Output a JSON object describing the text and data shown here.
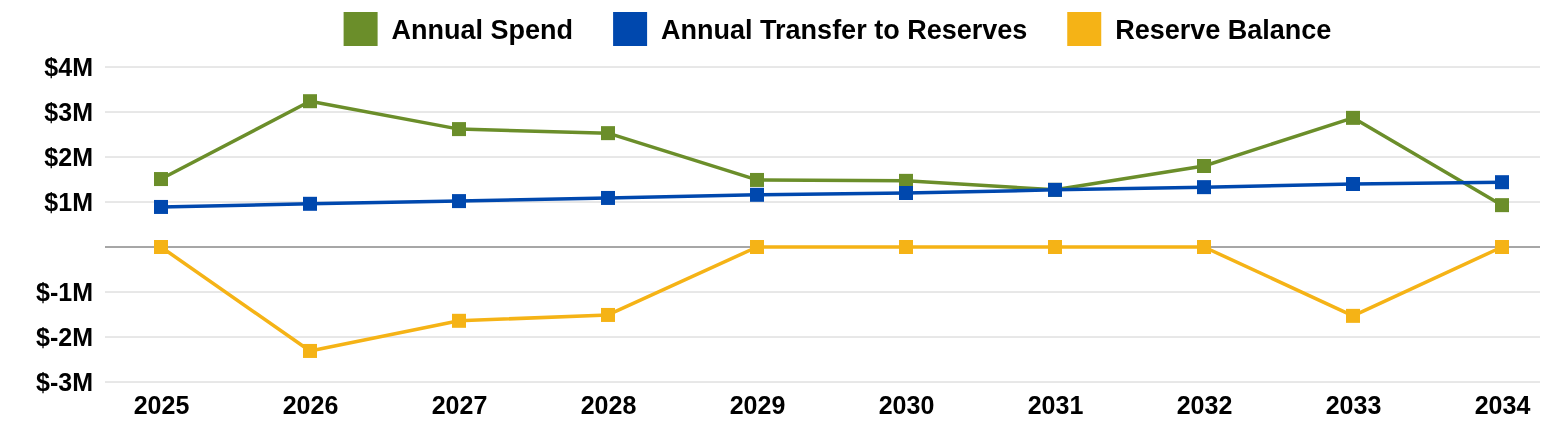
{
  "chart_data": {
    "type": "line",
    "categories": [
      "2025",
      "2026",
      "2027",
      "2028",
      "2029",
      "2030",
      "2031",
      "2032",
      "2033",
      "2034"
    ],
    "series": [
      {
        "name": "Annual Spend",
        "color": "#6b8e2a",
        "values": [
          1.51,
          3.24,
          2.62,
          2.53,
          1.49,
          1.47,
          1.27,
          1.8,
          2.87,
          0.93
        ]
      },
      {
        "name": "Annual Transfer to Reserves",
        "color": "#0048ae",
        "values": [
          0.89,
          0.96,
          1.02,
          1.09,
          1.16,
          1.2,
          1.27,
          1.33,
          1.4,
          1.44
        ]
      },
      {
        "name": "Reserve Balance",
        "color": "#f5b316",
        "values": [
          0,
          -2.31,
          -1.64,
          -1.51,
          0,
          0,
          0,
          0,
          -1.53,
          0
        ]
      }
    ],
    "ylim": [
      -3,
      4
    ],
    "yticks": [
      {
        "value": -3,
        "label": "$-3M"
      },
      {
        "value": -2,
        "label": "$-2M"
      },
      {
        "value": -1,
        "label": "$-1M"
      },
      {
        "value": 0,
        "label": null
      },
      {
        "value": 1,
        "label": "$1M"
      },
      {
        "value": 2,
        "label": "$2M"
      },
      {
        "value": 3,
        "label": "$3M"
      },
      {
        "value": 4,
        "label": "$4M"
      }
    ],
    "grid": "y",
    "legend": "top",
    "marker": "square",
    "line_style": "solid"
  }
}
